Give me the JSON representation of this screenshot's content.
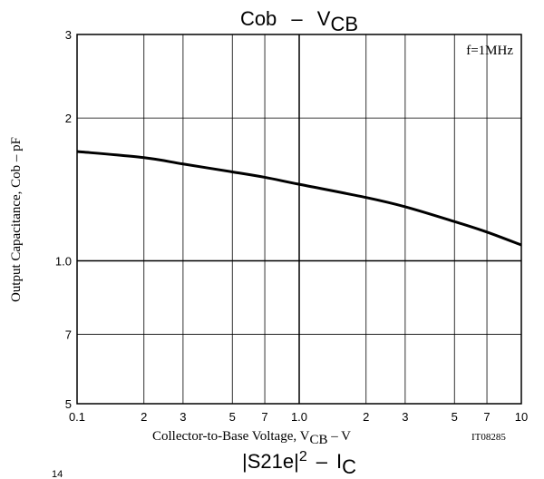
{
  "chart_data": {
    "type": "line",
    "title": "Cob – VCB",
    "title_parts": {
      "main": "Cob",
      "dash": "–",
      "sym": "V",
      "sub": "CB"
    },
    "xlabel": "Collector-to-Base Voltage, VCB – V",
    "xlabel_parts": {
      "main": "Collector-to-Base Voltage, V",
      "sub": "CB",
      "tail": " –  V"
    },
    "ylabel": "Output Capacitance, Cob – pF",
    "x_scale": "log",
    "y_scale": "log",
    "xlim": [
      0.1,
      10
    ],
    "ylim": [
      0.5,
      3
    ],
    "x_tick_labels": [
      {
        "v": 0.1,
        "t": "0.1"
      },
      {
        "v": 0.2,
        "t": "2"
      },
      {
        "v": 0.3,
        "t": "3"
      },
      {
        "v": 0.5,
        "t": "5"
      },
      {
        "v": 0.7,
        "t": "7"
      },
      {
        "v": 1.0,
        "t": "1.0"
      },
      {
        "v": 2,
        "t": "2"
      },
      {
        "v": 3,
        "t": "3"
      },
      {
        "v": 5,
        "t": "5"
      },
      {
        "v": 7,
        "t": "7"
      },
      {
        "v": 10,
        "t": "10"
      }
    ],
    "y_tick_labels": [
      {
        "v": 0.5,
        "t": "5"
      },
      {
        "v": 0.7,
        "t": "7"
      },
      {
        "v": 1.0,
        "t": "1.0"
      },
      {
        "v": 2,
        "t": "2"
      },
      {
        "v": 3,
        "t": "3"
      }
    ],
    "grid": true,
    "annotation": "f=1MHz",
    "series": [
      {
        "x": [
          0.1,
          0.2,
          0.3,
          0.5,
          0.7,
          1.0,
          2,
          3,
          5,
          7,
          10
        ],
        "y": [
          1.7,
          1.65,
          1.6,
          1.54,
          1.5,
          1.45,
          1.36,
          1.3,
          1.21,
          1.15,
          1.08
        ]
      }
    ]
  },
  "figure_code": "IT08285",
  "next_chart": {
    "title_parts": {
      "a": "S21e",
      "exp": "2",
      "dash": "–",
      "sym": "I",
      "sub": "C"
    },
    "partial_tick": "14"
  }
}
